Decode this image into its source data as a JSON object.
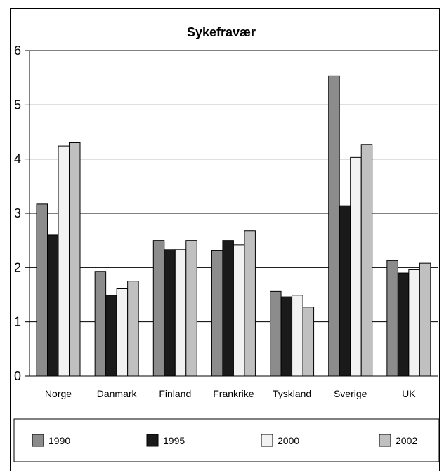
{
  "chart_data": {
    "type": "bar",
    "title": "Sykefravær",
    "xlabel": "",
    "ylabel": "",
    "ylim": [
      0,
      6
    ],
    "yticks": [
      0,
      1,
      2,
      3,
      4,
      5,
      6
    ],
    "grid": true,
    "legend_position": "bottom",
    "categories": [
      "Norge",
      "Danmark",
      "Finland",
      "Frankrike",
      "Tyskland",
      "Sverige",
      "UK"
    ],
    "series": [
      {
        "name": "1990",
        "color": "#8c8c8c",
        "values": [
          3.17,
          1.93,
          2.5,
          2.31,
          1.56,
          5.53,
          2.13
        ]
      },
      {
        "name": "1995",
        "color": "#1a1a1a",
        "values": [
          2.6,
          1.49,
          2.33,
          2.5,
          1.46,
          3.14,
          1.9
        ]
      },
      {
        "name": "2000",
        "color": "#f2f2f2",
        "values": [
          4.24,
          1.61,
          2.33,
          2.42,
          1.49,
          4.03,
          1.96
        ]
      },
      {
        "name": "2002",
        "color": "#c0c0c0",
        "values": [
          4.3,
          1.75,
          2.5,
          2.68,
          1.27,
          4.27,
          2.08
        ]
      }
    ]
  }
}
